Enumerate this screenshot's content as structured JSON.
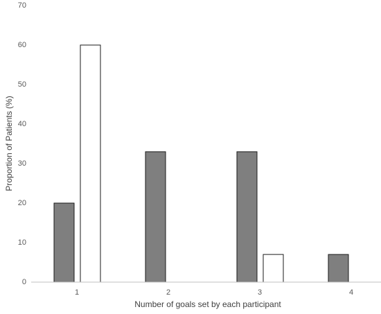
{
  "chart_data": {
    "type": "bar",
    "x_label": "Number of goals set by each participant",
    "y_label": "Proportion of Patients (%)",
    "categories": [
      "1",
      "2",
      "3",
      "4"
    ],
    "series": [
      {
        "color": "#7f7f7f",
        "values": [
          20,
          33,
          33,
          7
        ]
      },
      {
        "color": "#ffffff",
        "values": [
          60,
          0,
          7,
          0
        ]
      }
    ],
    "ylim": [
      0,
      70
    ],
    "yticks": [
      0,
      10,
      20,
      30,
      40,
      50,
      60,
      70
    ],
    "grid": false
  }
}
